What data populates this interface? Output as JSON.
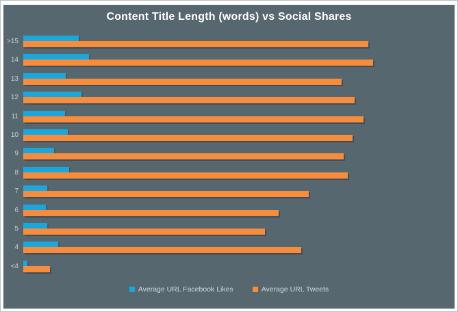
{
  "panel": {
    "background": "#566770",
    "border_color": "#b6bdc1",
    "title_color": "#ffffff",
    "axis_label_color": "#ccd3d7",
    "legend_text_color": "#d3dadd"
  },
  "chart_data": {
    "type": "bar",
    "orientation": "horizontal",
    "title": "Content Title Length (words) vs Social Shares",
    "xlabel": "",
    "ylabel": "Content Title Length (words)",
    "categories": [
      ">15",
      "14",
      "13",
      "12",
      "11",
      "10",
      "9",
      "8",
      "7",
      "6",
      "5",
      "4",
      "<4"
    ],
    "series": [
      {
        "name": "Average URL Facebook Likes",
        "color": "#1CA7DC",
        "values": [
          15.9,
          18.8,
          12.2,
          16.7,
          12.0,
          12.8,
          8.9,
          13.2,
          6.8,
          6.4,
          6.8,
          9.9,
          1.2
        ]
      },
      {
        "name": "Average URL Tweets",
        "color": "#F68C3C",
        "values": [
          98.6,
          100,
          91.1,
          94.8,
          97.3,
          94.2,
          91.7,
          92.8,
          81.7,
          73.0,
          69.1,
          79.4,
          7.6
        ]
      }
    ],
    "value_units": "relative (estimated from bar lengths; longest bar = 100)",
    "xlim": [
      0,
      120
    ],
    "grid": false,
    "x_axis_ticks_visible": false,
    "legend_position": "bottom-center"
  }
}
